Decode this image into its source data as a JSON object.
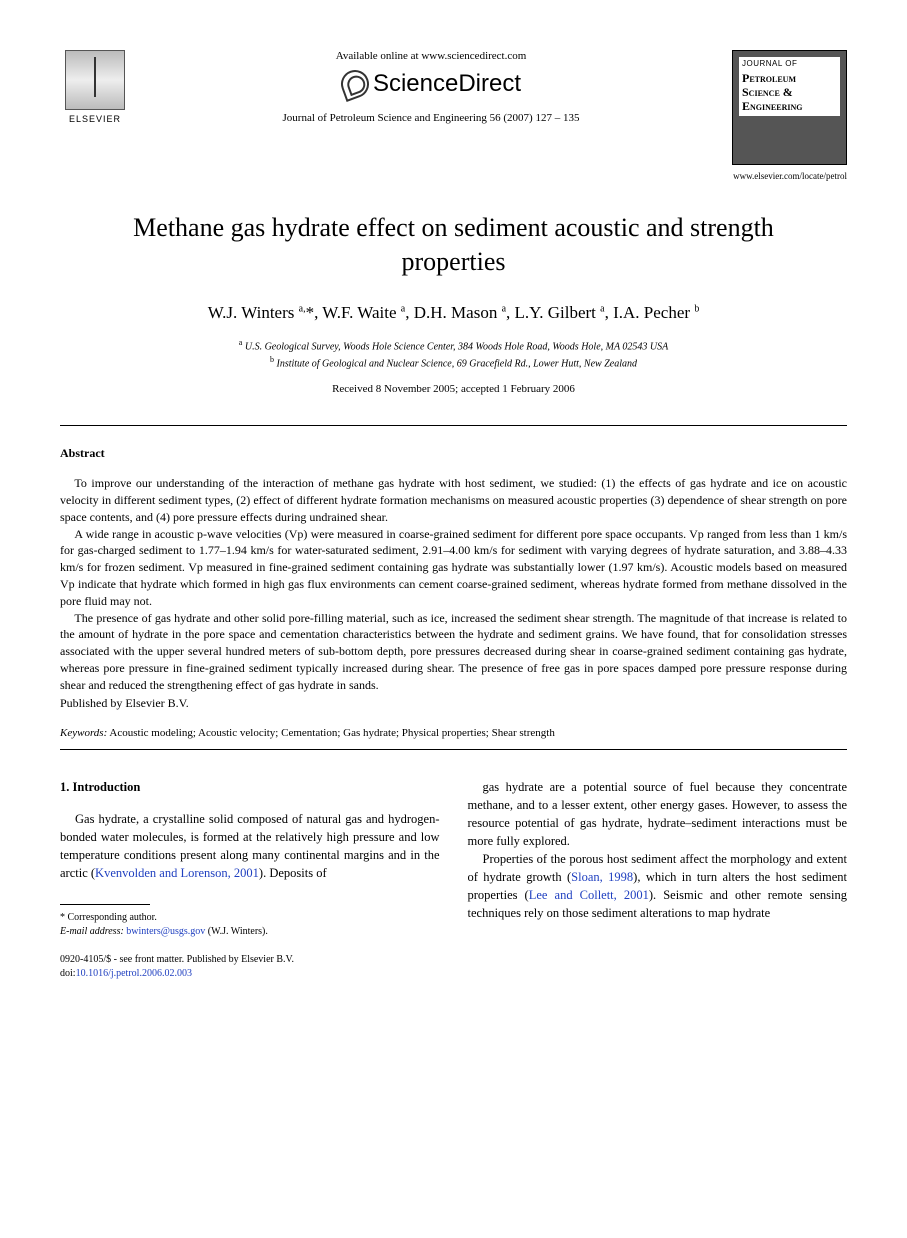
{
  "header": {
    "available_online": "Available online at www.sciencedirect.com",
    "sciencedirect": "ScienceDirect",
    "citation": "Journal of Petroleum Science and Engineering 56 (2007) 127 – 135",
    "elsevier_label": "ELSEVIER",
    "journal_cover": {
      "top_label": "JOURNAL OF",
      "line1": "Petroleum",
      "line2": "Science &",
      "line3": "Engineering",
      "url": "www.elsevier.com/locate/petrol"
    }
  },
  "title": "Methane gas hydrate effect on sediment acoustic and strength properties",
  "authors_html": "W.J. Winters <sup>a,</sup>*, W.F. Waite <sup>a</sup>, D.H. Mason <sup>a</sup>, L.Y. Gilbert <sup>a</sup>, I.A. Pecher <sup>b</sup>",
  "affiliations": {
    "a": "U.S. Geological Survey, Woods Hole Science Center, 384 Woods Hole Road, Woods Hole, MA 02543 USA",
    "b": "Institute of Geological and Nuclear Science, 69 Gracefield Rd., Lower Hutt, New Zealand"
  },
  "dates": "Received 8 November 2005; accepted 1 February 2006",
  "abstract": {
    "heading": "Abstract",
    "p1": "To improve our understanding of the interaction of methane gas hydrate with host sediment, we studied: (1) the effects of gas hydrate and ice on acoustic velocity in different sediment types, (2) effect of different hydrate formation mechanisms on measured acoustic properties (3) dependence of shear strength on pore space contents, and (4) pore pressure effects during undrained shear.",
    "p2": "A wide range in acoustic p-wave velocities (Vp) were measured in coarse-grained sediment for different pore space occupants. Vp ranged from less than 1 km/s for gas-charged sediment to 1.77–1.94 km/s for water-saturated sediment, 2.91–4.00 km/s for sediment with varying degrees of hydrate saturation, and 3.88–4.33 km/s for frozen sediment. Vp measured in fine-grained sediment containing gas hydrate was substantially lower (1.97 km/s). Acoustic models based on measured Vp indicate that hydrate which formed in high gas flux environments can cement coarse-grained sediment, whereas hydrate formed from methane dissolved in the pore fluid may not.",
    "p3": "The presence of gas hydrate and other solid pore-filling material, such as ice, increased the sediment shear strength. The magnitude of that increase is related to the amount of hydrate in the pore space and cementation characteristics between the hydrate and sediment grains. We have found, that for consolidation stresses associated with the upper several hundred meters of sub-bottom depth, pore pressures decreased during shear in coarse-grained sediment containing gas hydrate, whereas pore pressure in fine-grained sediment typically increased during shear. The presence of free gas in pore spaces damped pore pressure response during shear and reduced the strengthening effect of gas hydrate in sands.",
    "publisher": "Published by Elsevier B.V."
  },
  "keywords": {
    "label": "Keywords:",
    "text": "Acoustic modeling; Acoustic velocity; Cementation; Gas hydrate; Physical properties; Shear strength"
  },
  "section1": {
    "heading": "1. Introduction",
    "col1_p1_pre": "Gas hydrate, a crystalline solid composed of natural gas and hydrogen-bonded water molecules, is formed at the relatively high pressure and low temperature conditions present along many continental margins and in the arctic (",
    "col1_cite1": "Kvenvolden and Lorenson, 2001",
    "col1_p1_post": "). Deposits of",
    "col2_p1": "gas hydrate are a potential source of fuel because they concentrate methane, and to a lesser extent, other energy gases. However, to assess the resource potential of gas hydrate, hydrate–sediment interactions must be more fully explored.",
    "col2_p2_pre": "Properties of the porous host sediment affect the morphology and extent of hydrate growth (",
    "col2_cite1": "Sloan, 1998",
    "col2_p2_mid": "), which in turn alters the host sediment properties (",
    "col2_cite2": "Lee and Collett, 2001",
    "col2_p2_post": "). Seismic and other remote sensing techniques rely on those sediment alterations to map hydrate"
  },
  "footnote": {
    "corr": "* Corresponding author.",
    "email_label": "E-mail address:",
    "email": "bwinters@usgs.gov",
    "email_person": "(W.J. Winters)."
  },
  "copyright": {
    "line1": "0920-4105/$ - see front matter. Published by Elsevier B.V.",
    "doi_label": "doi:",
    "doi": "10.1016/j.petrol.2006.02.003"
  }
}
